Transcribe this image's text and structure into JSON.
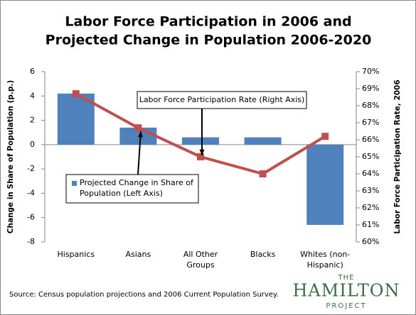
{
  "chart_data": {
    "type": "bar",
    "title": [
      "Labor Force Participation in 2006 and",
      "Projected Change in Population 2006-2020"
    ],
    "y_label": "Change in Share of Population (p.p.)",
    "y2_label": "Labor Force Participation Rate, 2006",
    "categories": [
      "Hispanics",
      "Asians",
      "All Other Groups",
      "Blacks",
      "Whites (non-Hispanic)"
    ],
    "series": [
      {
        "name": "Projected Change in Share of Population (Left Axis)",
        "type": "bar",
        "color": "#4f81bd",
        "values": [
          4.2,
          1.4,
          0.6,
          0.6,
          -6.6
        ]
      },
      {
        "name": "Labor Force Participation Rate (Right Axis)",
        "type": "line",
        "axis": "y2",
        "color": "#c0504d",
        "values": [
          68.7,
          66.7,
          65.0,
          64.0,
          66.2
        ]
      }
    ],
    "ylim": [
      -8,
      6
    ],
    "yticks": [
      -8,
      -6,
      -4,
      -2,
      0,
      2,
      4,
      6
    ],
    "y2lim": [
      60,
      70
    ],
    "y2ticks": [
      {
        "value": 60,
        "label": "60%"
      },
      {
        "value": 61,
        "label": "61%"
      },
      {
        "value": 62,
        "label": "62%"
      },
      {
        "value": 63,
        "label": "63%"
      },
      {
        "value": 64,
        "label": "64%"
      },
      {
        "value": 65,
        "label": "65%"
      },
      {
        "value": 66,
        "label": "66%"
      },
      {
        "value": 67,
        "label": "67%"
      },
      {
        "value": 68,
        "label": "68%"
      },
      {
        "value": 69,
        "label": "69%"
      },
      {
        "value": 70,
        "label": "70%"
      }
    ],
    "grid": false,
    "source": "Source: Census population projections and 2006 Current Population Survey.",
    "logo": {
      "top": "THE",
      "main": "HAMILTON",
      "bottom": "PROJECT"
    }
  }
}
